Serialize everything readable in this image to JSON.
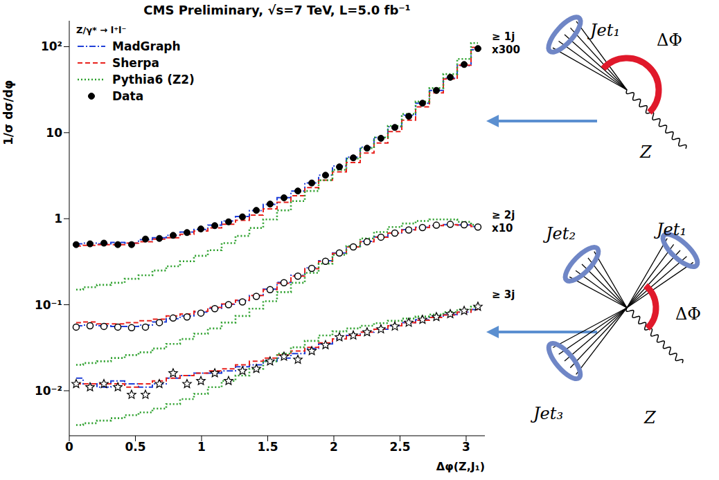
{
  "chart_data": {
    "type": "line",
    "title": "CMS Preliminary, √s=7 TeV, L=5.0 fb⁻¹",
    "xlabel": "Δφ(Z,J₁)",
    "ylabel": "1/σ dσ/dφ",
    "legend_title": "Z/γ* → l⁺l⁻",
    "log": "y",
    "grid": false,
    "legend": "upper left",
    "x": [
      0.052,
      0.157,
      0.262,
      0.367,
      0.471,
      0.576,
      0.681,
      0.785,
      0.89,
      0.995,
      1.1,
      1.204,
      1.309,
      1.414,
      1.518,
      1.623,
      1.728,
      1.833,
      1.937,
      2.042,
      2.147,
      2.251,
      2.356,
      2.461,
      2.566,
      2.67,
      2.775,
      2.88,
      2.985,
      3.089
    ],
    "xlim": [
      0,
      3.1416
    ],
    "xticks": [
      0,
      0.5,
      1,
      1.5,
      2,
      2.5,
      3
    ],
    "ylim": [
      0.003,
      200
    ],
    "yticks": [
      {
        "value": 0.01,
        "label": "10⁻²"
      },
      {
        "value": 0.1,
        "label": "10⁻¹"
      },
      1,
      10,
      {
        "value": 100,
        "label": "10²"
      }
    ],
    "groups": [
      {
        "name": "≥ 1j",
        "label": "x300"
      },
      {
        "name": "≥ 2j",
        "label": "x10"
      },
      {
        "name": "≥ 3j"
      }
    ],
    "series": [
      {
        "name": "MadGraph",
        "group": "≥ 1j",
        "color": "#1f3fd8",
        "line_style": "dashdot",
        "values": [
          0.51,
          0.52,
          0.51,
          0.53,
          0.52,
          0.57,
          0.6,
          0.64,
          0.7,
          0.75,
          0.84,
          0.94,
          1.06,
          1.24,
          1.47,
          1.76,
          2.1,
          2.6,
          3.2,
          4.1,
          5.2,
          6.8,
          8.8,
          11.7,
          16,
          22,
          31,
          43,
          60,
          92
        ]
      },
      {
        "name": "Sherpa",
        "group": "≥ 1j",
        "color": "#e8211c",
        "line_style": "dashed",
        "values": [
          0.48,
          0.49,
          0.5,
          0.5,
          0.52,
          0.54,
          0.58,
          0.6,
          0.66,
          0.72,
          0.78,
          0.86,
          0.96,
          1.1,
          1.3,
          1.55,
          1.85,
          2.3,
          2.8,
          3.5,
          4.5,
          5.8,
          7.6,
          10.3,
          14,
          20,
          29,
          42,
          61,
          98
        ]
      },
      {
        "name": "Pythia6 (Z2)",
        "group": "≥ 1j",
        "color": "#2ca02c",
        "line_style": "dotted",
        "values": [
          0.15,
          0.16,
          0.17,
          0.18,
          0.2,
          0.22,
          0.25,
          0.28,
          0.32,
          0.37,
          0.43,
          0.52,
          0.63,
          0.78,
          0.98,
          1.25,
          1.6,
          2.1,
          2.8,
          3.7,
          5.0,
          6.6,
          8.8,
          12,
          16.5,
          23,
          33,
          48,
          72,
          110
        ]
      },
      {
        "name": "Data",
        "group": "≥ 1j",
        "color": "#000000",
        "marker": "circle",
        "values": [
          0.5,
          0.51,
          0.52,
          0.5,
          0.5,
          0.58,
          0.59,
          0.64,
          0.69,
          0.76,
          0.83,
          0.92,
          1.05,
          1.25,
          1.48,
          1.75,
          2.1,
          2.6,
          3.2,
          4.0,
          5.1,
          6.6,
          8.6,
          11.5,
          15.5,
          22,
          31,
          44,
          62,
          95
        ]
      },
      {
        "name": "MadGraph",
        "group": "≥ 2j",
        "color": "#1f3fd8",
        "line_style": "dashdot",
        "values": [
          0.057,
          0.058,
          0.057,
          0.056,
          0.056,
          0.058,
          0.063,
          0.069,
          0.074,
          0.082,
          0.091,
          0.101,
          0.112,
          0.128,
          0.152,
          0.182,
          0.22,
          0.268,
          0.325,
          0.4,
          0.475,
          0.545,
          0.615,
          0.685,
          0.745,
          0.795,
          0.835,
          0.855,
          0.845,
          0.81
        ]
      },
      {
        "name": "Sherpa",
        "group": "≥ 2j",
        "color": "#e8211c",
        "line_style": "dashed",
        "values": [
          0.062,
          0.063,
          0.06,
          0.06,
          0.062,
          0.065,
          0.068,
          0.074,
          0.078,
          0.084,
          0.093,
          0.102,
          0.113,
          0.128,
          0.15,
          0.178,
          0.215,
          0.262,
          0.318,
          0.395,
          0.47,
          0.54,
          0.61,
          0.68,
          0.74,
          0.79,
          0.83,
          0.85,
          0.84,
          0.81
        ]
      },
      {
        "name": "Pythia6 (Z2)",
        "group": "≥ 2j",
        "color": "#2ca02c",
        "line_style": "dotted",
        "values": [
          0.02,
          0.021,
          0.022,
          0.024,
          0.026,
          0.028,
          0.031,
          0.035,
          0.04,
          0.046,
          0.053,
          0.062,
          0.074,
          0.09,
          0.11,
          0.14,
          0.18,
          0.235,
          0.3,
          0.38,
          0.48,
          0.59,
          0.7,
          0.8,
          0.88,
          0.94,
          0.98,
          0.98,
          0.92,
          0.85
        ]
      },
      {
        "name": "Data",
        "group": "≥ 2j",
        "color": "#000000",
        "marker": "open_circle",
        "values": [
          0.055,
          0.057,
          0.056,
          0.055,
          0.054,
          0.055,
          0.062,
          0.07,
          0.072,
          0.08,
          0.09,
          0.1,
          0.108,
          0.125,
          0.15,
          0.18,
          0.215,
          0.265,
          0.32,
          0.4,
          0.47,
          0.54,
          0.61,
          0.68,
          0.74,
          0.79,
          0.84,
          0.86,
          0.85,
          0.8
        ]
      },
      {
        "name": "MadGraph",
        "group": "≥ 3j",
        "color": "#1f3fd8",
        "line_style": "dashdot",
        "values": [
          0.014,
          0.012,
          0.011,
          0.013,
          0.012,
          0.011,
          0.012,
          0.014,
          0.015,
          0.016,
          0.016,
          0.017,
          0.019,
          0.02,
          0.022,
          0.024,
          0.027,
          0.031,
          0.035,
          0.04,
          0.044,
          0.048,
          0.052,
          0.057,
          0.062,
          0.067,
          0.072,
          0.077,
          0.082,
          0.088
        ]
      },
      {
        "name": "Sherpa",
        "group": "≥ 3j",
        "color": "#e8211c",
        "line_style": "dashed",
        "values": [
          0.012,
          0.012,
          0.012,
          0.012,
          0.011,
          0.012,
          0.013,
          0.014,
          0.015,
          0.016,
          0.017,
          0.018,
          0.02,
          0.022,
          0.024,
          0.026,
          0.029,
          0.032,
          0.036,
          0.04,
          0.044,
          0.048,
          0.052,
          0.057,
          0.062,
          0.066,
          0.071,
          0.076,
          0.082,
          0.088
        ]
      },
      {
        "name": "Pythia6 (Z2)",
        "group": "≥ 3j",
        "color": "#2ca02c",
        "line_style": "dotted",
        "values": [
          0.004,
          0.0042,
          0.0045,
          0.0048,
          0.0052,
          0.0056,
          0.0062,
          0.007,
          0.008,
          0.0092,
          0.011,
          0.013,
          0.015,
          0.018,
          0.022,
          0.027,
          0.032,
          0.038,
          0.044,
          0.049,
          0.053,
          0.057,
          0.061,
          0.065,
          0.069,
          0.073,
          0.077,
          0.082,
          0.088,
          0.095
        ]
      },
      {
        "name": "Data",
        "group": "≥ 3j",
        "color": "#000000",
        "marker": "star",
        "values": [
          0.012,
          0.011,
          0.012,
          0.011,
          0.009,
          0.009,
          0.012,
          0.016,
          0.012,
          0.013,
          0.016,
          0.013,
          0.017,
          0.018,
          0.022,
          0.025,
          0.023,
          0.029,
          0.034,
          0.042,
          0.044,
          0.048,
          0.052,
          0.056,
          0.062,
          0.067,
          0.072,
          0.078,
          0.085,
          0.095
        ]
      }
    ],
    "diagrams": [
      {
        "jets": [
          "Jet₁"
        ],
        "angle": "ΔΦ",
        "boson": "Z"
      },
      {
        "jets": [
          "Jet₂",
          "Jet₁",
          "Jet₃"
        ],
        "angle": "ΔΦ",
        "boson": "Z"
      }
    ]
  }
}
